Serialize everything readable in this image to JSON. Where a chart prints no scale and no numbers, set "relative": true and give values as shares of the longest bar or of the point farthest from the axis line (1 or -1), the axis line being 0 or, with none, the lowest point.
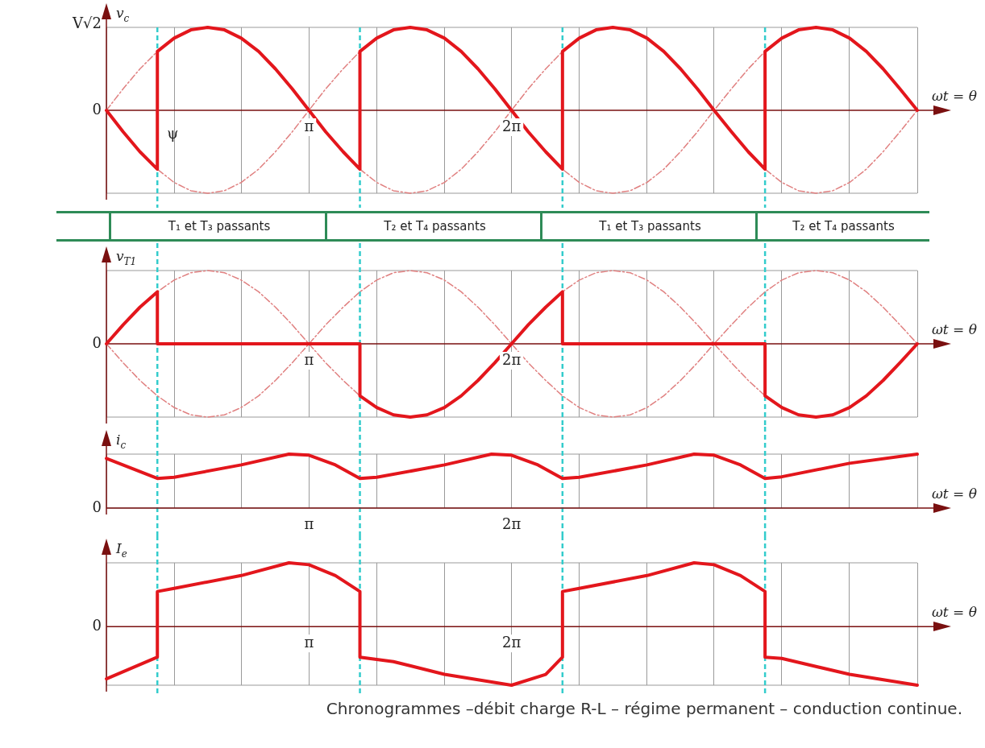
{
  "chart_data": [
    {
      "type": "line",
      "relative": true,
      "ylabel": "v$_{c}$",
      "xlabel": "ωt = θ",
      "marker": "none",
      "grid": "x",
      "legend": false,
      "x": [
        0,
        0.26,
        0.52,
        0.79,
        1.05,
        1.31,
        1.57,
        1.83,
        2.09,
        2.36,
        2.62,
        2.88,
        3.14,
        3.4,
        3.67,
        3.93,
        4.19,
        4.45,
        4.71,
        4.97,
        5.24,
        5.5,
        5.76,
        6.02,
        6.28,
        6.54,
        6.81,
        7.07,
        7.33,
        7.59,
        7.85,
        8.12,
        8.38,
        8.64,
        8.9,
        9.16,
        9.42,
        9.69,
        9.95,
        10.21,
        10.47,
        10.73,
        11.0,
        11.26,
        11.52,
        11.78,
        12.04,
        12.3,
        12.57
      ],
      "series": [
        {
          "color": "#e08080",
          "line_style": "dashed",
          "values": [
            0,
            0.26,
            0.5,
            0.71,
            0.87,
            0.97,
            1,
            0.97,
            0.87,
            0.71,
            0.5,
            0.26,
            0,
            -0.26,
            -0.5,
            -0.71,
            -0.87,
            -0.97,
            -1,
            -0.97,
            -0.87,
            -0.71,
            -0.5,
            -0.26,
            0,
            0.26,
            0.5,
            0.71,
            0.87,
            0.97,
            1,
            0.97,
            0.87,
            0.71,
            0.5,
            0.26,
            0,
            -0.26,
            -0.5,
            -0.71,
            -0.87,
            -0.97,
            -1,
            -0.97,
            -0.87,
            -0.71,
            -0.5,
            -0.26,
            0
          ]
        },
        {
          "color": "#e08080",
          "line_style": "dashed",
          "values": [
            null,
            -0.26,
            -0.5,
            -0.71,
            -0.87,
            -0.97,
            -1,
            -0.97,
            -0.87,
            -0.71,
            -0.5,
            -0.26,
            0,
            0.26,
            0.5,
            0.71,
            0.87,
            0.97,
            1,
            0.97,
            0.87,
            0.71,
            0.5,
            0.26,
            0,
            -0.26,
            -0.5,
            -0.71,
            -0.87,
            -0.97,
            -1,
            -0.97,
            -0.87,
            -0.71,
            -0.5,
            -0.26,
            0,
            0.26,
            0.5,
            0.71,
            0.87,
            0.97,
            1,
            0.97,
            0.87,
            0.71,
            0.5,
            0.26,
            null
          ]
        },
        {
          "color": "#e3161c",
          "x": [
            0,
            0.26,
            0.52,
            0.79,
            0.79,
            1.05,
            1.31,
            1.57,
            1.83,
            2.09,
            2.36,
            2.62,
            2.88,
            3.14,
            3.4,
            3.67,
            3.93,
            3.93,
            4.19,
            4.45,
            4.71,
            4.97,
            5.24,
            5.5,
            5.76,
            6.02,
            6.28,
            6.54,
            6.81,
            7.07,
            7.07,
            7.33,
            7.59,
            7.85,
            8.12,
            8.38,
            8.64,
            8.9,
            9.16,
            9.42,
            9.69,
            9.95,
            10.21,
            10.21,
            10.47,
            10.73,
            11.0,
            11.26,
            11.52,
            11.78,
            12.04,
            12.3,
            12.57
          ],
          "values": [
            0,
            -0.26,
            -0.5,
            -0.71,
            0.71,
            0.87,
            0.97,
            1,
            0.97,
            0.87,
            0.71,
            0.5,
            0.26,
            0,
            -0.26,
            -0.5,
            -0.71,
            0.71,
            0.87,
            0.97,
            1,
            0.97,
            0.87,
            0.71,
            0.5,
            0.26,
            0,
            -0.26,
            -0.5,
            -0.71,
            0.71,
            0.87,
            0.97,
            1,
            0.97,
            0.87,
            0.71,
            0.5,
            0.26,
            0,
            -0.26,
            -0.5,
            -0.71,
            0.71,
            0.87,
            0.97,
            1,
            0.97,
            0.87,
            0.71,
            0.5,
            0.26,
            0
          ]
        }
      ],
      "xlim": [
        0,
        12.57
      ],
      "xticks": [
        {
          "value": 0,
          "label": null
        },
        {
          "value": 1.05,
          "label": null
        },
        {
          "value": 2.09,
          "label": null
        },
        {
          "value": 3.14,
          "label": "π"
        },
        {
          "value": 4.19,
          "label": null
        },
        {
          "value": 5.24,
          "label": null
        },
        {
          "value": 6.28,
          "label": "2π"
        },
        {
          "value": 7.33,
          "label": null
        },
        {
          "value": 8.38,
          "label": null
        },
        {
          "value": 9.42,
          "label": null
        },
        {
          "value": 10.47,
          "label": null
        },
        {
          "value": 11.52,
          "label": null
        },
        {
          "value": 12.57,
          "label": null
        }
      ],
      "annotations": [
        "0",
        "V√2"
      ],
      "ref_lines": [
        {
          "axis": "x",
          "value": 0.79,
          "label": "ψ",
          "color": "#33cccc",
          "line_style": "dashed"
        },
        {
          "axis": "x",
          "value": 3.93,
          "color": "#33cccc",
          "line_style": "dashed"
        },
        {
          "axis": "x",
          "value": 7.07,
          "color": "#33cccc",
          "line_style": "dashed"
        },
        {
          "axis": "x",
          "value": 10.21,
          "color": "#33cccc",
          "line_style": "dashed"
        }
      ]
    },
    {
      "type": "other",
      "annotations": [
        "T₁ et T₃ passants",
        "T₂ et T₄ passants",
        "T₁ et T₃ passants",
        "T₂ et T₄ passants"
      ]
    },
    {
      "type": "line",
      "relative": true,
      "ylabel": "v$_{T1}$",
      "xlabel": "ωt = θ",
      "marker": "none",
      "grid": "x",
      "legend": false,
      "x": [
        0,
        0.26,
        0.52,
        0.79,
        1.05,
        1.31,
        1.57,
        1.83,
        2.09,
        2.36,
        2.62,
        2.88,
        3.14,
        3.4,
        3.67,
        3.93,
        4.19,
        4.45,
        4.71,
        4.97,
        5.24,
        5.5,
        5.76,
        6.02,
        6.28,
        6.54,
        6.81,
        7.07,
        7.33,
        7.59,
        7.85,
        8.12,
        8.38,
        8.64,
        8.9,
        9.16,
        9.42,
        9.69,
        9.95,
        10.21,
        10.47,
        10.73,
        11.0,
        11.26,
        11.52,
        11.78,
        12.04,
        12.3,
        12.57
      ],
      "series": [
        {
          "color": "#e08080",
          "line_style": "dashed",
          "values": [
            null,
            0.26,
            0.5,
            0.71,
            0.87,
            0.97,
            1,
            0.97,
            0.87,
            0.71,
            0.5,
            0.26,
            0,
            -0.26,
            -0.5,
            -0.71,
            -0.87,
            -0.97,
            -1,
            -0.97,
            -0.87,
            -0.71,
            -0.5,
            -0.26,
            0,
            0.26,
            0.5,
            0.71,
            0.87,
            0.97,
            1,
            0.97,
            0.87,
            0.71,
            0.5,
            0.26,
            0,
            -0.26,
            -0.5,
            -0.71,
            -0.87,
            -0.97,
            -1,
            -0.97,
            -0.87,
            -0.71,
            -0.5,
            -0.26,
            null
          ]
        },
        {
          "color": "#e08080",
          "line_style": "dashed",
          "values": [
            0,
            -0.26,
            -0.5,
            -0.71,
            -0.87,
            -0.97,
            -1,
            -0.97,
            -0.87,
            -0.71,
            -0.5,
            -0.26,
            0,
            0.26,
            0.5,
            0.71,
            0.87,
            0.97,
            1,
            0.97,
            0.87,
            0.71,
            0.5,
            0.26,
            0,
            -0.26,
            -0.5,
            -0.71,
            -0.87,
            -0.97,
            -1,
            -0.97,
            -0.87,
            -0.71,
            -0.5,
            -0.26,
            0,
            0.26,
            0.5,
            0.71,
            0.87,
            0.97,
            1,
            0.97,
            0.87,
            0.71,
            0.5,
            0.26,
            0
          ]
        },
        {
          "color": "#e3161c",
          "x": [
            0,
            0.26,
            0.52,
            0.79,
            0.79,
            3.93,
            3.93,
            4.19,
            4.45,
            4.71,
            4.97,
            5.24,
            5.5,
            5.76,
            6.02,
            6.28,
            6.54,
            6.81,
            7.07,
            7.07,
            10.21,
            10.21,
            10.47,
            10.73,
            11.0,
            11.26,
            11.52,
            11.78,
            12.04,
            12.3,
            12.57
          ],
          "values": [
            0,
            0.26,
            0.5,
            0.71,
            0,
            0,
            -0.71,
            -0.87,
            -0.97,
            -1,
            -0.97,
            -0.87,
            -0.71,
            -0.5,
            -0.26,
            0,
            0.26,
            0.5,
            0.71,
            0,
            0,
            -0.71,
            -0.87,
            -0.97,
            -1,
            -0.97,
            -0.87,
            -0.71,
            -0.5,
            -0.26,
            0
          ]
        }
      ],
      "xlim": [
        0,
        12.57
      ],
      "xticks": [
        {
          "value": 0,
          "label": null
        },
        {
          "value": 1.05,
          "label": null
        },
        {
          "value": 2.09,
          "label": null
        },
        {
          "value": 3.14,
          "label": "π"
        },
        {
          "value": 4.19,
          "label": null
        },
        {
          "value": 5.24,
          "label": null
        },
        {
          "value": 6.28,
          "label": "2π"
        },
        {
          "value": 7.33,
          "label": null
        },
        {
          "value": 8.38,
          "label": null
        },
        {
          "value": 9.42,
          "label": null
        },
        {
          "value": 10.47,
          "label": null
        },
        {
          "value": 11.52,
          "label": null
        },
        {
          "value": 12.57,
          "label": null
        }
      ],
      "annotations": [
        "0"
      ],
      "ref_lines": [
        {
          "axis": "x",
          "value": 0.79,
          "color": "#33cccc",
          "line_style": "dashed"
        },
        {
          "axis": "x",
          "value": 3.93,
          "color": "#33cccc",
          "line_style": "dashed"
        },
        {
          "axis": "x",
          "value": 7.07,
          "color": "#33cccc",
          "line_style": "dashed"
        },
        {
          "axis": "x",
          "value": 10.21,
          "color": "#33cccc",
          "line_style": "dashed"
        }
      ]
    },
    {
      "type": "line",
      "relative": true,
      "ylabel": "i$_{c}$",
      "xlabel": "ωt = θ",
      "marker": "none",
      "grid": "x",
      "legend": false,
      "series": [
        {
          "color": "#e3161c",
          "x": [
            0,
            0.79,
            1.05,
            2.09,
            2.83,
            3.14,
            3.55,
            3.93,
            4.19,
            5.24,
            5.97,
            6.28,
            6.69,
            7.07,
            7.33,
            8.38,
            9.11,
            9.42,
            9.83,
            10.21,
            10.47,
            11.52,
            12.57
          ],
          "values": [
            0.92,
            0.55,
            0.57,
            0.8,
            1,
            0.98,
            0.8,
            0.55,
            0.57,
            0.8,
            1,
            0.98,
            0.8,
            0.55,
            0.57,
            0.8,
            1,
            0.98,
            0.8,
            0.55,
            0.58,
            0.83,
            1
          ]
        }
      ],
      "xlim": [
        0,
        12.57
      ],
      "xticks": [
        {
          "value": 0,
          "label": null
        },
        {
          "value": 1.05,
          "label": null
        },
        {
          "value": 2.09,
          "label": null
        },
        {
          "value": 3.14,
          "label": "π"
        },
        {
          "value": 4.19,
          "label": null
        },
        {
          "value": 5.24,
          "label": null
        },
        {
          "value": 6.28,
          "label": "2π"
        },
        {
          "value": 7.33,
          "label": null
        },
        {
          "value": 8.38,
          "label": null
        },
        {
          "value": 9.42,
          "label": null
        },
        {
          "value": 10.47,
          "label": null
        },
        {
          "value": 11.52,
          "label": null
        },
        {
          "value": 12.57,
          "label": null
        }
      ],
      "annotations": [
        "0"
      ],
      "ref_lines": [
        {
          "axis": "x",
          "value": 0.79,
          "color": "#33cccc",
          "line_style": "dashed"
        },
        {
          "axis": "x",
          "value": 3.93,
          "color": "#33cccc",
          "line_style": "dashed"
        },
        {
          "axis": "x",
          "value": 7.07,
          "color": "#33cccc",
          "line_style": "dashed"
        },
        {
          "axis": "x",
          "value": 10.21,
          "color": "#33cccc",
          "line_style": "dashed"
        }
      ]
    },
    {
      "type": "line",
      "relative": true,
      "ylabel": "I$_{e}$",
      "xlabel": "ωt = θ",
      "marker": "none",
      "grid": "x",
      "legend": false,
      "series": [
        {
          "color": "#e3161c",
          "x": [
            0,
            0.79,
            0.79,
            1.05,
            2.09,
            2.83,
            3.14,
            3.55,
            3.93,
            3.93,
            4.45,
            5.24,
            6.28,
            6.81,
            7.07,
            7.07,
            7.33,
            8.38,
            9.11,
            9.42,
            9.83,
            10.21,
            10.21,
            10.47,
            11.52,
            12.57
          ],
          "values": [
            -0.82,
            -0.48,
            0.55,
            0.6,
            0.8,
            1,
            0.97,
            0.8,
            0.55,
            -0.48,
            -0.55,
            -0.75,
            -0.92,
            -0.75,
            -0.48,
            0.55,
            0.6,
            0.8,
            1,
            0.97,
            0.8,
            0.55,
            -0.48,
            -0.5,
            -0.75,
            -0.92
          ]
        }
      ],
      "xlim": [
        0,
        12.57
      ],
      "xticks": [
        {
          "value": 0,
          "label": null
        },
        {
          "value": 1.05,
          "label": null
        },
        {
          "value": 2.09,
          "label": null
        },
        {
          "value": 3.14,
          "label": "π"
        },
        {
          "value": 4.19,
          "label": null
        },
        {
          "value": 5.24,
          "label": null
        },
        {
          "value": 6.28,
          "label": "2π"
        },
        {
          "value": 7.33,
          "label": null
        },
        {
          "value": 8.38,
          "label": null
        },
        {
          "value": 9.42,
          "label": null
        },
        {
          "value": 10.47,
          "label": null
        },
        {
          "value": 11.52,
          "label": null
        },
        {
          "value": 12.57,
          "label": null
        }
      ],
      "annotations": [
        "0"
      ],
      "ref_lines": [
        {
          "axis": "x",
          "value": 0.79,
          "color": "#33cccc",
          "line_style": "dashed"
        },
        {
          "axis": "x",
          "value": 3.93,
          "color": "#33cccc",
          "line_style": "dashed"
        },
        {
          "axis": "x",
          "value": 7.07,
          "color": "#33cccc",
          "line_style": "dashed"
        },
        {
          "axis": "x",
          "value": 10.21,
          "color": "#33cccc",
          "line_style": "dashed"
        }
      ]
    },
    {
      "type": "other",
      "annotations": [
        "Chronogrammes –débit charge R-L – régime permanent – conduction continue."
      ]
    }
  ]
}
